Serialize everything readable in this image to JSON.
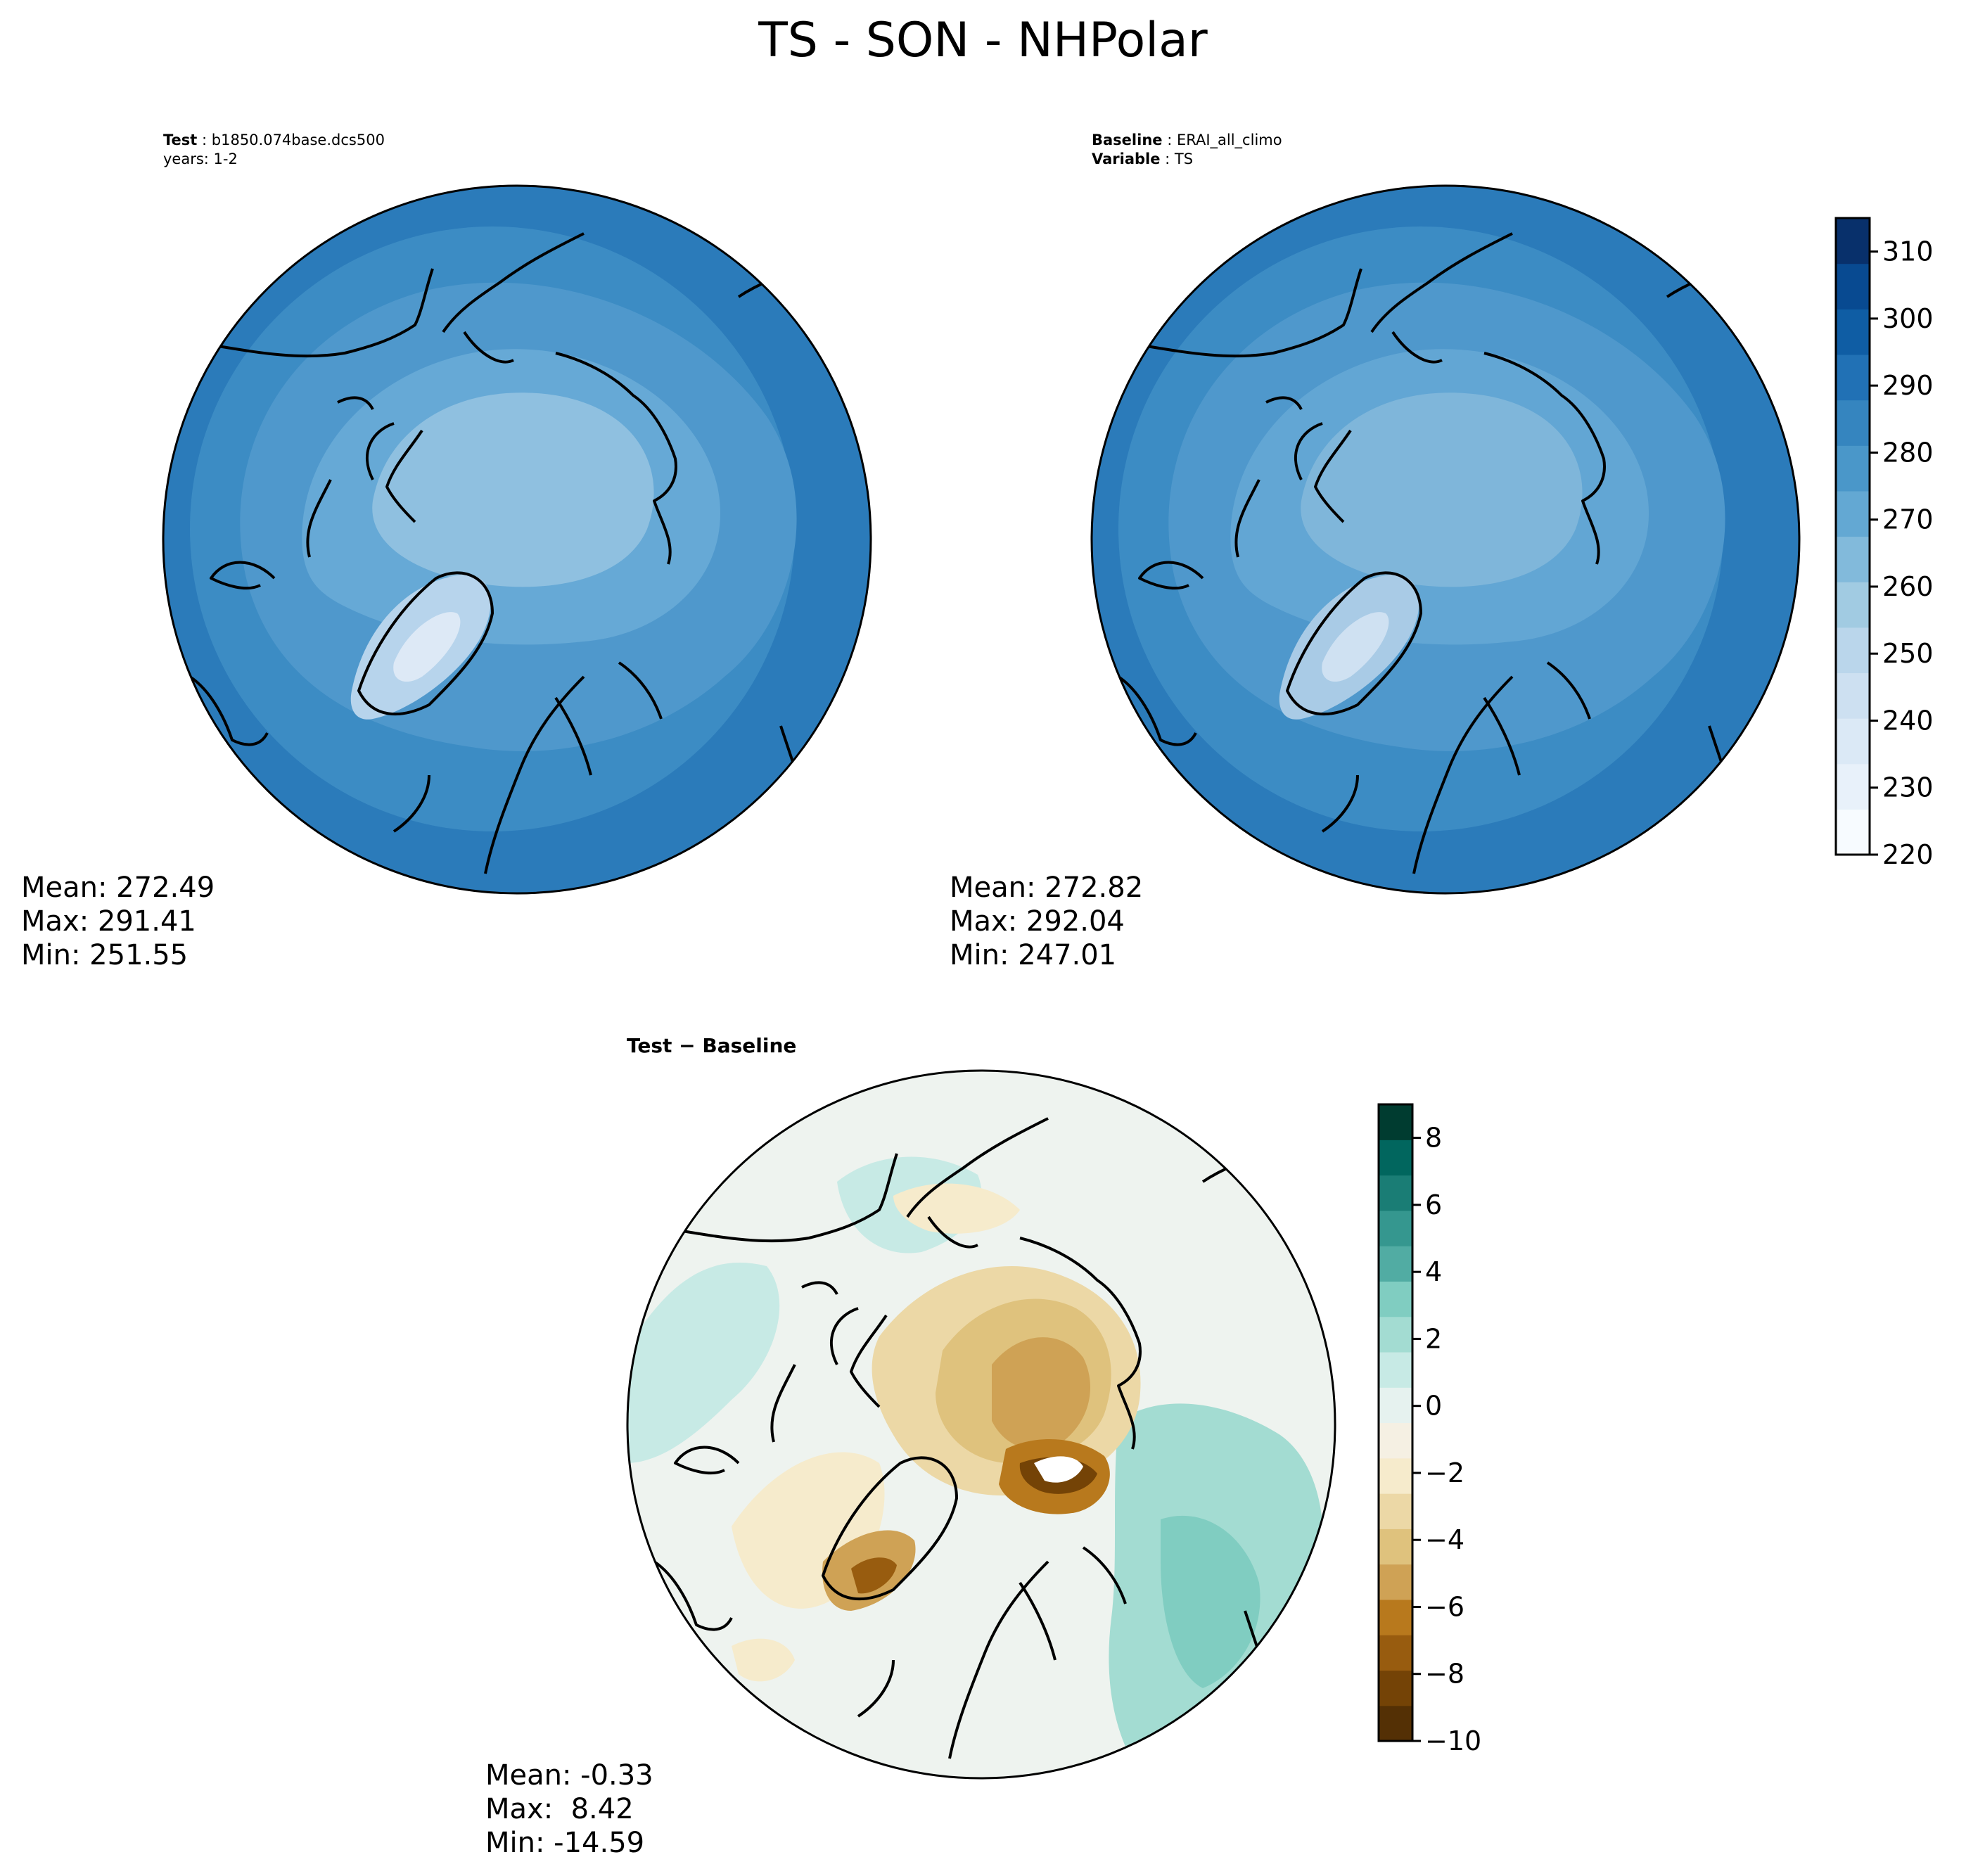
{
  "figure": {
    "title": "TS - SON - NHPolar"
  },
  "panels": {
    "test": {
      "header_bold": "Test",
      "header_value": "b1850.074base.dcs500",
      "header_line2": "years: 1-2",
      "stats": {
        "mean": "Mean: 272.49",
        "max": "Max: 291.41",
        "min": "Min: 251.55"
      }
    },
    "baseline": {
      "header_bold": "Baseline",
      "header_value": "ERAI_all_climo",
      "header_bold2": "Variable",
      "header_value2": "TS",
      "stats": {
        "mean": "Mean: 272.82",
        "max": "Max: 292.04",
        "min": "Min: 247.01"
      }
    },
    "difference": {
      "header": "Test − Baseline",
      "stats": {
        "mean": "Mean: -0.33",
        "max": "Max:  8.42",
        "min": "Min: -14.59"
      }
    }
  },
  "colorbars": {
    "main": {
      "ticks": [
        "220",
        "230",
        "240",
        "250",
        "260",
        "270",
        "280",
        "290",
        "300",
        "310"
      ],
      "range": [
        220,
        315
      ],
      "colormap": "Blues",
      "colors": [
        "#f7fbff",
        "#e8f1fa",
        "#dbe9f6",
        "#cde0f1",
        "#bad6eb",
        "#a1cbe2",
        "#82badb",
        "#63a8d3",
        "#4a97c9",
        "#3585bf",
        "#2171b5",
        "#0f5da4",
        "#084a91",
        "#08306b"
      ]
    },
    "diff": {
      "ticks": [
        "8",
        "6",
        "4",
        "2",
        "0",
        "−2",
        "−4",
        "−6",
        "−8",
        "−10"
      ],
      "range": [
        -10,
        9
      ],
      "colormap": "BrBG",
      "colors": [
        "#543005",
        "#744306",
        "#985c0f",
        "#b8791d",
        "#cfa255",
        "#dfc27d",
        "#ecd8a6",
        "#f6ebcc",
        "#f5f0e3",
        "#e6f2ef",
        "#c7eae5",
        "#a3dcd2",
        "#80cdc1",
        "#51aca3",
        "#35978f",
        "#1a7d75",
        "#01665e",
        "#003c30"
      ]
    }
  },
  "map_colors": {
    "ocean_outer": "#2b7bba",
    "ocean_mid": "#3f8fc5",
    "land_mid": "#5aa2d0",
    "arctic": "#8fc0de",
    "greenland": "#c7dcef",
    "coast": "#000000"
  }
}
